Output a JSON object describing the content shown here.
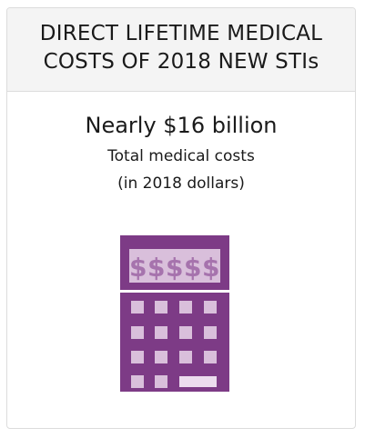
{
  "header": {
    "title_line1": "DIRECT LIFETIME MEDICAL",
    "title_line2": "COSTS OF 2018 NEW STIs"
  },
  "body": {
    "headline": "Nearly $16 billion",
    "subtitle_line1": "Total medical costs",
    "subtitle_line2": "(in 2018 dollars)"
  },
  "icon": {
    "name": "calculator-icon",
    "display_text": "$$$$$",
    "color_body": "#7d3b86",
    "color_keys": "#d9bfdb"
  }
}
